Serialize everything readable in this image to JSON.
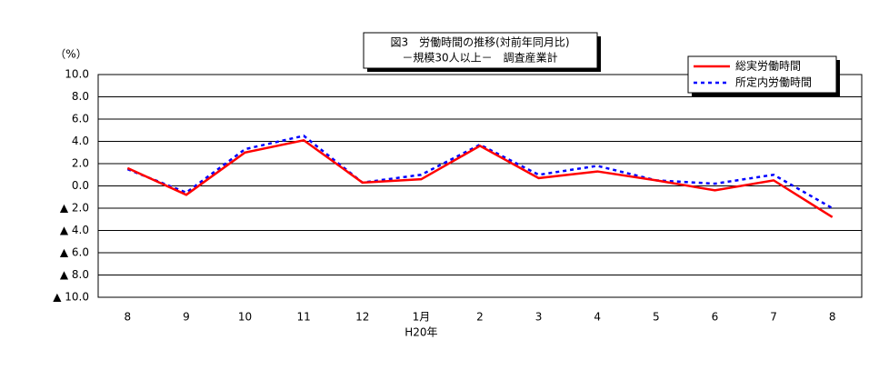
{
  "chart_data": {
    "type": "line",
    "title": [
      "図3　労働時間の推移(対前年同月比)",
      "－規模30人以上－　調査産業計"
    ],
    "y_unit": "（%）",
    "categories": [
      "8",
      "9",
      "10",
      "11",
      "12",
      "1月",
      "2",
      "3",
      "4",
      "5",
      "6",
      "7",
      "8"
    ],
    "x_annotation": "H20年",
    "series": [
      {
        "name": "総実労働時間",
        "color": "#ff0000",
        "style": "solid",
        "values": [
          1.6,
          -0.8,
          3.0,
          4.1,
          0.3,
          0.6,
          3.6,
          0.7,
          1.3,
          0.5,
          -0.4,
          0.5,
          -2.8
        ]
      },
      {
        "name": "所定内労働時間",
        "color": "#0000ff",
        "style": "dotted",
        "values": [
          1.5,
          -0.6,
          3.3,
          4.5,
          0.3,
          1.0,
          3.7,
          1.0,
          1.8,
          0.5,
          0.2,
          1.0,
          -2.0
        ]
      }
    ],
    "ylim": [
      -10,
      10
    ],
    "yticks": [
      {
        "value": 10,
        "label": "10.0"
      },
      {
        "value": 8,
        "label": "8.0"
      },
      {
        "value": 6,
        "label": "6.0"
      },
      {
        "value": 4,
        "label": "4.0"
      },
      {
        "value": 2,
        "label": "2.0"
      },
      {
        "value": 0,
        "label": "0.0"
      },
      {
        "value": -2,
        "label": "▲ 2.0"
      },
      {
        "value": -4,
        "label": "▲ 4.0"
      },
      {
        "value": -6,
        "label": "▲ 6.0"
      },
      {
        "value": -8,
        "label": "▲ 8.0"
      },
      {
        "value": -10,
        "label": "▲ 10.0"
      }
    ],
    "grid": true,
    "legend": "top-right"
  }
}
